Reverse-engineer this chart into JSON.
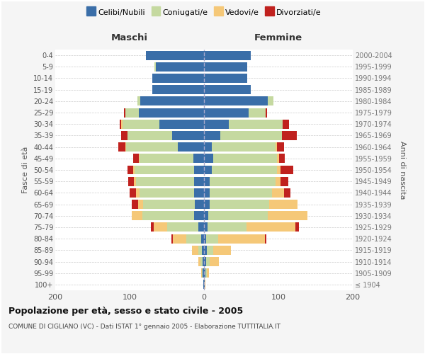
{
  "age_groups": [
    "100+",
    "95-99",
    "90-94",
    "85-89",
    "80-84",
    "75-79",
    "70-74",
    "65-69",
    "60-64",
    "55-59",
    "50-54",
    "45-49",
    "40-44",
    "35-39",
    "30-34",
    "25-29",
    "20-24",
    "15-19",
    "10-14",
    "5-9",
    "0-4"
  ],
  "birth_years": [
    "≤ 1904",
    "1905-1909",
    "1910-1914",
    "1915-1919",
    "1920-1924",
    "1925-1929",
    "1930-1934",
    "1935-1939",
    "1940-1944",
    "1945-1949",
    "1950-1954",
    "1955-1959",
    "1960-1964",
    "1965-1969",
    "1970-1974",
    "1975-1979",
    "1980-1984",
    "1985-1989",
    "1990-1994",
    "1995-1999",
    "2000-2004"
  ],
  "colors": {
    "celibi": "#3a6ea8",
    "coniugati": "#c5d9a0",
    "vedovi": "#f5c878",
    "divorziati": "#c0211e"
  },
  "maschi": {
    "celibi": [
      1,
      2,
      2,
      3,
      4,
      8,
      13,
      12,
      13,
      13,
      13,
      14,
      35,
      43,
      60,
      88,
      86,
      70,
      70,
      65,
      78
    ],
    "coniugati": [
      0,
      1,
      3,
      5,
      20,
      42,
      70,
      70,
      74,
      78,
      80,
      73,
      70,
      60,
      50,
      18,
      4,
      0,
      0,
      2,
      0
    ],
    "vedovi": [
      0,
      1,
      3,
      8,
      18,
      18,
      14,
      7,
      4,
      3,
      2,
      1,
      1,
      0,
      1,
      0,
      0,
      0,
      0,
      0,
      0
    ],
    "divorziati": [
      0,
      0,
      0,
      0,
      2,
      3,
      0,
      8,
      9,
      8,
      8,
      7,
      9,
      8,
      2,
      2,
      0,
      0,
      0,
      0,
      0
    ]
  },
  "femmine": {
    "celibi": [
      1,
      2,
      3,
      4,
      3,
      5,
      6,
      8,
      8,
      8,
      10,
      12,
      10,
      22,
      33,
      60,
      86,
      63,
      58,
      58,
      63
    ],
    "coniugati": [
      0,
      2,
      5,
      8,
      16,
      52,
      80,
      80,
      83,
      88,
      88,
      86,
      86,
      83,
      73,
      23,
      7,
      0,
      0,
      0,
      0
    ],
    "vedovi": [
      1,
      3,
      12,
      24,
      63,
      66,
      53,
      38,
      17,
      7,
      5,
      3,
      2,
      0,
      0,
      0,
      0,
      0,
      0,
      0,
      0
    ],
    "divorziati": [
      0,
      0,
      0,
      0,
      2,
      5,
      0,
      0,
      8,
      10,
      17,
      8,
      10,
      20,
      8,
      2,
      0,
      0,
      0,
      0,
      0
    ]
  },
  "xlim": 200,
  "title": "Popolazione per età, sesso e stato civile - 2005",
  "subtitle": "COMUNE DI CIGLIANO (VC) - Dati ISTAT 1° gennaio 2005 - Elaborazione TUTTITALIA.IT",
  "ylabel_left": "Fasce di età",
  "ylabel_right": "Anni di nascita",
  "xlabel_left": "Maschi",
  "xlabel_right": "Femmine",
  "legend_labels": [
    "Celibi/Nubili",
    "Coniugati/e",
    "Vedovi/e",
    "Divorziati/e"
  ],
  "bg_color": "#f5f5f5",
  "plot_bg": "#ffffff",
  "grid_color": "#cccccc",
  "bar_height": 0.8
}
